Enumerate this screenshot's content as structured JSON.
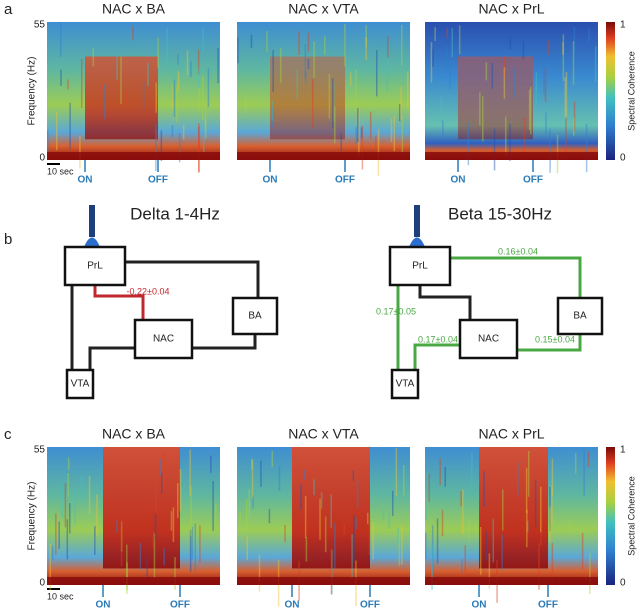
{
  "panel_a": {
    "label": "a",
    "y_axis_label": "Frequency (Hz)",
    "y_top": "55",
    "y_bottom": "0",
    "scale_bar": "10 sec",
    "plots": [
      {
        "title": "NAC x BA",
        "on": "ON",
        "off": "OFF"
      },
      {
        "title": "NAC x VTA",
        "on": "ON",
        "off": "OFF"
      },
      {
        "title": "NAC x  PrL",
        "on": "ON",
        "off": "OFF"
      }
    ],
    "colorbar": {
      "label": "Spectral Coherence",
      "top": "1",
      "bottom": "0"
    }
  },
  "panel_b": {
    "label": "b",
    "diagrams": [
      {
        "title": "Delta 1-4Hz",
        "nodes": [
          "PrL",
          "BA",
          "NAC",
          "VTA"
        ],
        "edges": [
          {
            "label": "-0.22±0.04",
            "color": "#c0282d"
          }
        ]
      },
      {
        "title": "Beta 15-30Hz",
        "nodes": [
          "PrL",
          "BA",
          "NAC",
          "VTA"
        ],
        "edges": [
          {
            "label": "0.16±0.04",
            "color": "#4aa844"
          },
          {
            "label": "0.17±0.05",
            "color": "#4aa844"
          },
          {
            "label": "0.17±0.04",
            "color": "#4aa844"
          },
          {
            "label": "0.15±0.04",
            "color": "#4aa844"
          }
        ]
      }
    ]
  },
  "panel_c": {
    "label": "c",
    "y_axis_label": "Frequency (Hz)",
    "y_top": "55",
    "y_bottom": "0",
    "scale_bar": "10 sec",
    "plots": [
      {
        "title": "NAC x BA",
        "on": "ON",
        "off": "OFF"
      },
      {
        "title": "NAC x VTA",
        "on": "ON",
        "off": "OFF"
      },
      {
        "title": "NAC x  PrL",
        "on": "ON",
        "off": "OFF"
      }
    ],
    "colorbar": {
      "label": "Spectral Coherence",
      "top": "1",
      "bottom": "0"
    }
  }
}
